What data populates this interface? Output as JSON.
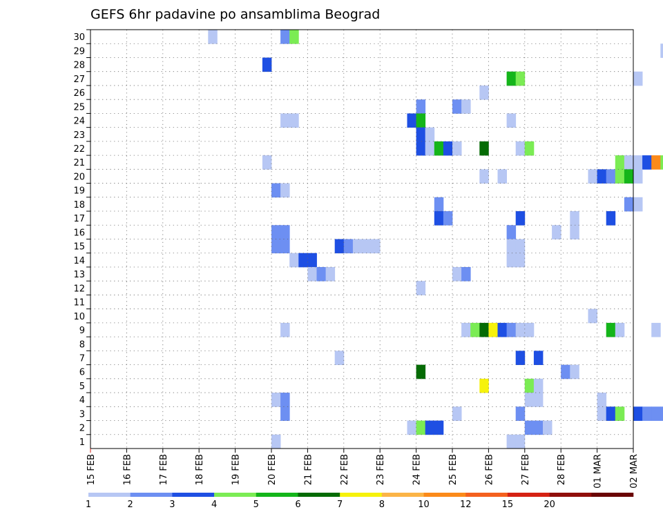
{
  "chart_data": {
    "type": "heatmap",
    "title": "GEFS 6hr padavine po ansamblima Beograd",
    "xlabel": "",
    "ylabel": "",
    "y_categories": [
      1,
      2,
      3,
      4,
      5,
      6,
      7,
      8,
      9,
      10,
      11,
      12,
      13,
      14,
      15,
      16,
      17,
      18,
      19,
      20,
      21,
      22,
      23,
      24,
      25,
      26,
      27,
      28,
      29,
      30
    ],
    "x_tick_labels": [
      "15 FEB",
      "16 FEB",
      "17 FEB",
      "18 FEB",
      "19 FEB",
      "20 FEB",
      "21 FEB",
      "22 FEB",
      "23 FEB",
      "24 FEB",
      "25 FEB",
      "26 FEB",
      "27 FEB",
      "28 FEB",
      "01 MAR",
      "02 MAR"
    ],
    "x_range": [
      "15 FEB 00Z",
      "02 MAR 00Z"
    ],
    "grid": true,
    "colorbar": {
      "labels": [
        "1",
        "2",
        "3",
        "4",
        "5",
        "6",
        "7",
        "8",
        "10",
        "12",
        "15",
        "20"
      ],
      "colors": [
        "#b7c7f4",
        "#6d8ff2",
        "#1e4fe3",
        "#7bec54",
        "#14b51a",
        "#056b05",
        "#f6f20c",
        "#fbb447",
        "#fb8a1a",
        "#f4601e",
        "#d52214",
        "#900e0b",
        "#6a0505"
      ]
    },
    "cells": [
      {
        "member": 30,
        "time": "18 FEB 06Z",
        "bin": 1
      },
      {
        "member": 30,
        "time": "20 FEB 06Z",
        "bin": 2
      },
      {
        "member": 30,
        "time": "20 FEB 12Z",
        "bin": 4
      },
      {
        "member": 29,
        "time": "01 MAR 18Z",
        "bin": 1
      },
      {
        "member": 28,
        "time": "19 FEB 18Z",
        "bin": 3
      },
      {
        "member": 27,
        "time": "26 FEB 12Z",
        "bin": 5
      },
      {
        "member": 27,
        "time": "26 FEB 18Z",
        "bin": 4
      },
      {
        "member": 27,
        "time": "01 MAR 00Z",
        "bin": 1
      },
      {
        "member": 26,
        "time": "25 FEB 18Z",
        "bin": 1
      },
      {
        "member": 25,
        "time": "24 FEB 00Z",
        "bin": 2
      },
      {
        "member": 25,
        "time": "25 FEB 00Z",
        "bin": 2
      },
      {
        "member": 25,
        "time": "25 FEB 06Z",
        "bin": 1
      },
      {
        "member": 24,
        "time": "20 FEB 06Z",
        "bin": 1
      },
      {
        "member": 24,
        "time": "20 FEB 12Z",
        "bin": 1
      },
      {
        "member": 24,
        "time": "23 FEB 18Z",
        "bin": 3
      },
      {
        "member": 24,
        "time": "24 FEB 00Z",
        "bin": 5
      },
      {
        "member": 24,
        "time": "26 FEB 12Z",
        "bin": 1
      },
      {
        "member": 23,
        "time": "24 FEB 00Z",
        "bin": 3
      },
      {
        "member": 23,
        "time": "24 FEB 06Z",
        "bin": 1
      },
      {
        "member": 22,
        "time": "24 FEB 00Z",
        "bin": 3
      },
      {
        "member": 22,
        "time": "24 FEB 06Z",
        "bin": 1
      },
      {
        "member": 22,
        "time": "24 FEB 12Z",
        "bin": 5
      },
      {
        "member": 22,
        "time": "24 FEB 18Z",
        "bin": 3
      },
      {
        "member": 22,
        "time": "25 FEB 00Z",
        "bin": 1
      },
      {
        "member": 22,
        "time": "25 FEB 18Z",
        "bin": 6
      },
      {
        "member": 22,
        "time": "26 FEB 18Z",
        "bin": 1
      },
      {
        "member": 22,
        "time": "27 FEB 00Z",
        "bin": 4
      },
      {
        "member": 21,
        "time": "19 FEB 18Z",
        "bin": 1
      },
      {
        "member": 21,
        "time": "29 FEB 12Z",
        "bin": 4
      },
      {
        "member": 21,
        "time": "29 FEB 18Z",
        "bin": 1
      },
      {
        "member": 21,
        "time": "01 MAR 00Z",
        "bin": 1
      },
      {
        "member": 21,
        "time": "01 MAR 06Z",
        "bin": 3
      },
      {
        "member": 21,
        "time": "01 MAR 12Z",
        "bin": 9
      },
      {
        "member": 21,
        "time": "01 MAR 18Z",
        "bin": 4
      },
      {
        "member": 21,
        "time": "02 MAR 00Z",
        "bin": 2
      },
      {
        "member": 20,
        "time": "25 FEB 18Z",
        "bin": 1
      },
      {
        "member": 20,
        "time": "26 FEB 06Z",
        "bin": 1
      },
      {
        "member": 20,
        "time": "28 FEB 18Z",
        "bin": 1
      },
      {
        "member": 20,
        "time": "29 FEB 00Z",
        "bin": 3
      },
      {
        "member": 20,
        "time": "29 FEB 06Z",
        "bin": 2
      },
      {
        "member": 20,
        "time": "29 FEB 12Z",
        "bin": 4
      },
      {
        "member": 20,
        "time": "29 FEB 18Z",
        "bin": 5
      },
      {
        "member": 20,
        "time": "01 MAR 00Z",
        "bin": 1
      },
      {
        "member": 19,
        "time": "20 FEB 00Z",
        "bin": 2
      },
      {
        "member": 19,
        "time": "20 FEB 06Z",
        "bin": 1
      },
      {
        "member": 18,
        "time": "24 FEB 12Z",
        "bin": 2
      },
      {
        "member": 18,
        "time": "29 FEB 18Z",
        "bin": 2
      },
      {
        "member": 18,
        "time": "01 MAR 00Z",
        "bin": 1
      },
      {
        "member": 17,
        "time": "24 FEB 12Z",
        "bin": 3
      },
      {
        "member": 17,
        "time": "24 FEB 18Z",
        "bin": 2
      },
      {
        "member": 17,
        "time": "26 FEB 18Z",
        "bin": 3
      },
      {
        "member": 17,
        "time": "28 FEB 06Z",
        "bin": 1
      },
      {
        "member": 17,
        "time": "29 FEB 06Z",
        "bin": 3
      },
      {
        "member": 16,
        "time": "20 FEB 00Z",
        "bin": 2
      },
      {
        "member": 16,
        "time": "20 FEB 06Z",
        "bin": 2
      },
      {
        "member": 16,
        "time": "26 FEB 12Z",
        "bin": 2
      },
      {
        "member": 16,
        "time": "27 FEB 18Z",
        "bin": 1
      },
      {
        "member": 16,
        "time": "28 FEB 06Z",
        "bin": 1
      },
      {
        "member": 15,
        "time": "20 FEB 00Z",
        "bin": 2
      },
      {
        "member": 15,
        "time": "20 FEB 06Z",
        "bin": 2
      },
      {
        "member": 15,
        "time": "21 FEB 18Z",
        "bin": 3
      },
      {
        "member": 15,
        "time": "22 FEB 00Z",
        "bin": 2
      },
      {
        "member": 15,
        "time": "22 FEB 06Z",
        "bin": 1
      },
      {
        "member": 15,
        "time": "22 FEB 12Z",
        "bin": 1
      },
      {
        "member": 15,
        "time": "22 FEB 18Z",
        "bin": 1
      },
      {
        "member": 15,
        "time": "26 FEB 12Z",
        "bin": 1
      },
      {
        "member": 15,
        "time": "26 FEB 18Z",
        "bin": 1
      },
      {
        "member": 14,
        "time": "20 FEB 12Z",
        "bin": 1
      },
      {
        "member": 14,
        "time": "20 FEB 18Z",
        "bin": 3
      },
      {
        "member": 14,
        "time": "21 FEB 00Z",
        "bin": 3
      },
      {
        "member": 14,
        "time": "26 FEB 12Z",
        "bin": 1
      },
      {
        "member": 14,
        "time": "26 FEB 18Z",
        "bin": 1
      },
      {
        "member": 13,
        "time": "21 FEB 00Z",
        "bin": 1
      },
      {
        "member": 13,
        "time": "21 FEB 06Z",
        "bin": 2
      },
      {
        "member": 13,
        "time": "21 FEB 12Z",
        "bin": 1
      },
      {
        "member": 13,
        "time": "25 FEB 00Z",
        "bin": 1
      },
      {
        "member": 13,
        "time": "25 FEB 06Z",
        "bin": 2
      },
      {
        "member": 12,
        "time": "24 FEB 00Z",
        "bin": 1
      },
      {
        "member": 10,
        "time": "28 FEB 18Z",
        "bin": 1
      },
      {
        "member": 9,
        "time": "20 FEB 06Z",
        "bin": 1
      },
      {
        "member": 9,
        "time": "25 FEB 06Z",
        "bin": 1
      },
      {
        "member": 9,
        "time": "25 FEB 12Z",
        "bin": 4
      },
      {
        "member": 9,
        "time": "25 FEB 18Z",
        "bin": 6
      },
      {
        "member": 9,
        "time": "26 FEB 00Z",
        "bin": 7
      },
      {
        "member": 9,
        "time": "26 FEB 06Z",
        "bin": 3
      },
      {
        "member": 9,
        "time": "26 FEB 12Z",
        "bin": 2
      },
      {
        "member": 9,
        "time": "26 FEB 18Z",
        "bin": 1
      },
      {
        "member": 9,
        "time": "27 FEB 00Z",
        "bin": 1
      },
      {
        "member": 9,
        "time": "29 FEB 06Z",
        "bin": 5
      },
      {
        "member": 9,
        "time": "29 FEB 12Z",
        "bin": 1
      },
      {
        "member": 9,
        "time": "01 MAR 12Z",
        "bin": 1
      },
      {
        "member": 7,
        "time": "21 FEB 18Z",
        "bin": 1
      },
      {
        "member": 7,
        "time": "26 FEB 18Z",
        "bin": 3
      },
      {
        "member": 7,
        "time": "27 FEB 06Z",
        "bin": 3
      },
      {
        "member": 6,
        "time": "24 FEB 00Z",
        "bin": 6
      },
      {
        "member": 6,
        "time": "28 FEB 00Z",
        "bin": 2
      },
      {
        "member": 6,
        "time": "28 FEB 06Z",
        "bin": 1
      },
      {
        "member": 5,
        "time": "25 FEB 18Z",
        "bin": 7
      },
      {
        "member": 5,
        "time": "27 FEB 00Z",
        "bin": 4
      },
      {
        "member": 5,
        "time": "27 FEB 06Z",
        "bin": 1
      },
      {
        "member": 4,
        "time": "20 FEB 00Z",
        "bin": 1
      },
      {
        "member": 4,
        "time": "20 FEB 06Z",
        "bin": 2
      },
      {
        "member": 4,
        "time": "27 FEB 00Z",
        "bin": 1
      },
      {
        "member": 4,
        "time": "27 FEB 06Z",
        "bin": 1
      },
      {
        "member": 4,
        "time": "29 FEB 00Z",
        "bin": 1
      },
      {
        "member": 3,
        "time": "20 FEB 06Z",
        "bin": 2
      },
      {
        "member": 3,
        "time": "25 FEB 00Z",
        "bin": 1
      },
      {
        "member": 3,
        "time": "26 FEB 18Z",
        "bin": 2
      },
      {
        "member": 3,
        "time": "29 FEB 00Z",
        "bin": 1
      },
      {
        "member": 3,
        "time": "29 FEB 06Z",
        "bin": 3
      },
      {
        "member": 3,
        "time": "29 FEB 12Z",
        "bin": 4
      },
      {
        "member": 3,
        "time": "01 MAR 00Z",
        "bin": 3
      },
      {
        "member": 3,
        "time": "01 MAR 06Z",
        "bin": 2
      },
      {
        "member": 3,
        "time": "01 MAR 12Z",
        "bin": 2
      },
      {
        "member": 3,
        "time": "01 MAR 18Z",
        "bin": 2
      },
      {
        "member": 2,
        "time": "23 FEB 18Z",
        "bin": 1
      },
      {
        "member": 2,
        "time": "24 FEB 00Z",
        "bin": 4
      },
      {
        "member": 2,
        "time": "24 FEB 06Z",
        "bin": 3
      },
      {
        "member": 2,
        "time": "24 FEB 12Z",
        "bin": 3
      },
      {
        "member": 2,
        "time": "27 FEB 00Z",
        "bin": 2
      },
      {
        "member": 2,
        "time": "27 FEB 06Z",
        "bin": 2
      },
      {
        "member": 2,
        "time": "27 FEB 12Z",
        "bin": 1
      },
      {
        "member": 1,
        "time": "20 FEB 00Z",
        "bin": 1
      },
      {
        "member": 1,
        "time": "26 FEB 12Z",
        "bin": 1
      },
      {
        "member": 1,
        "time": "26 FEB 18Z",
        "bin": 1
      }
    ]
  }
}
